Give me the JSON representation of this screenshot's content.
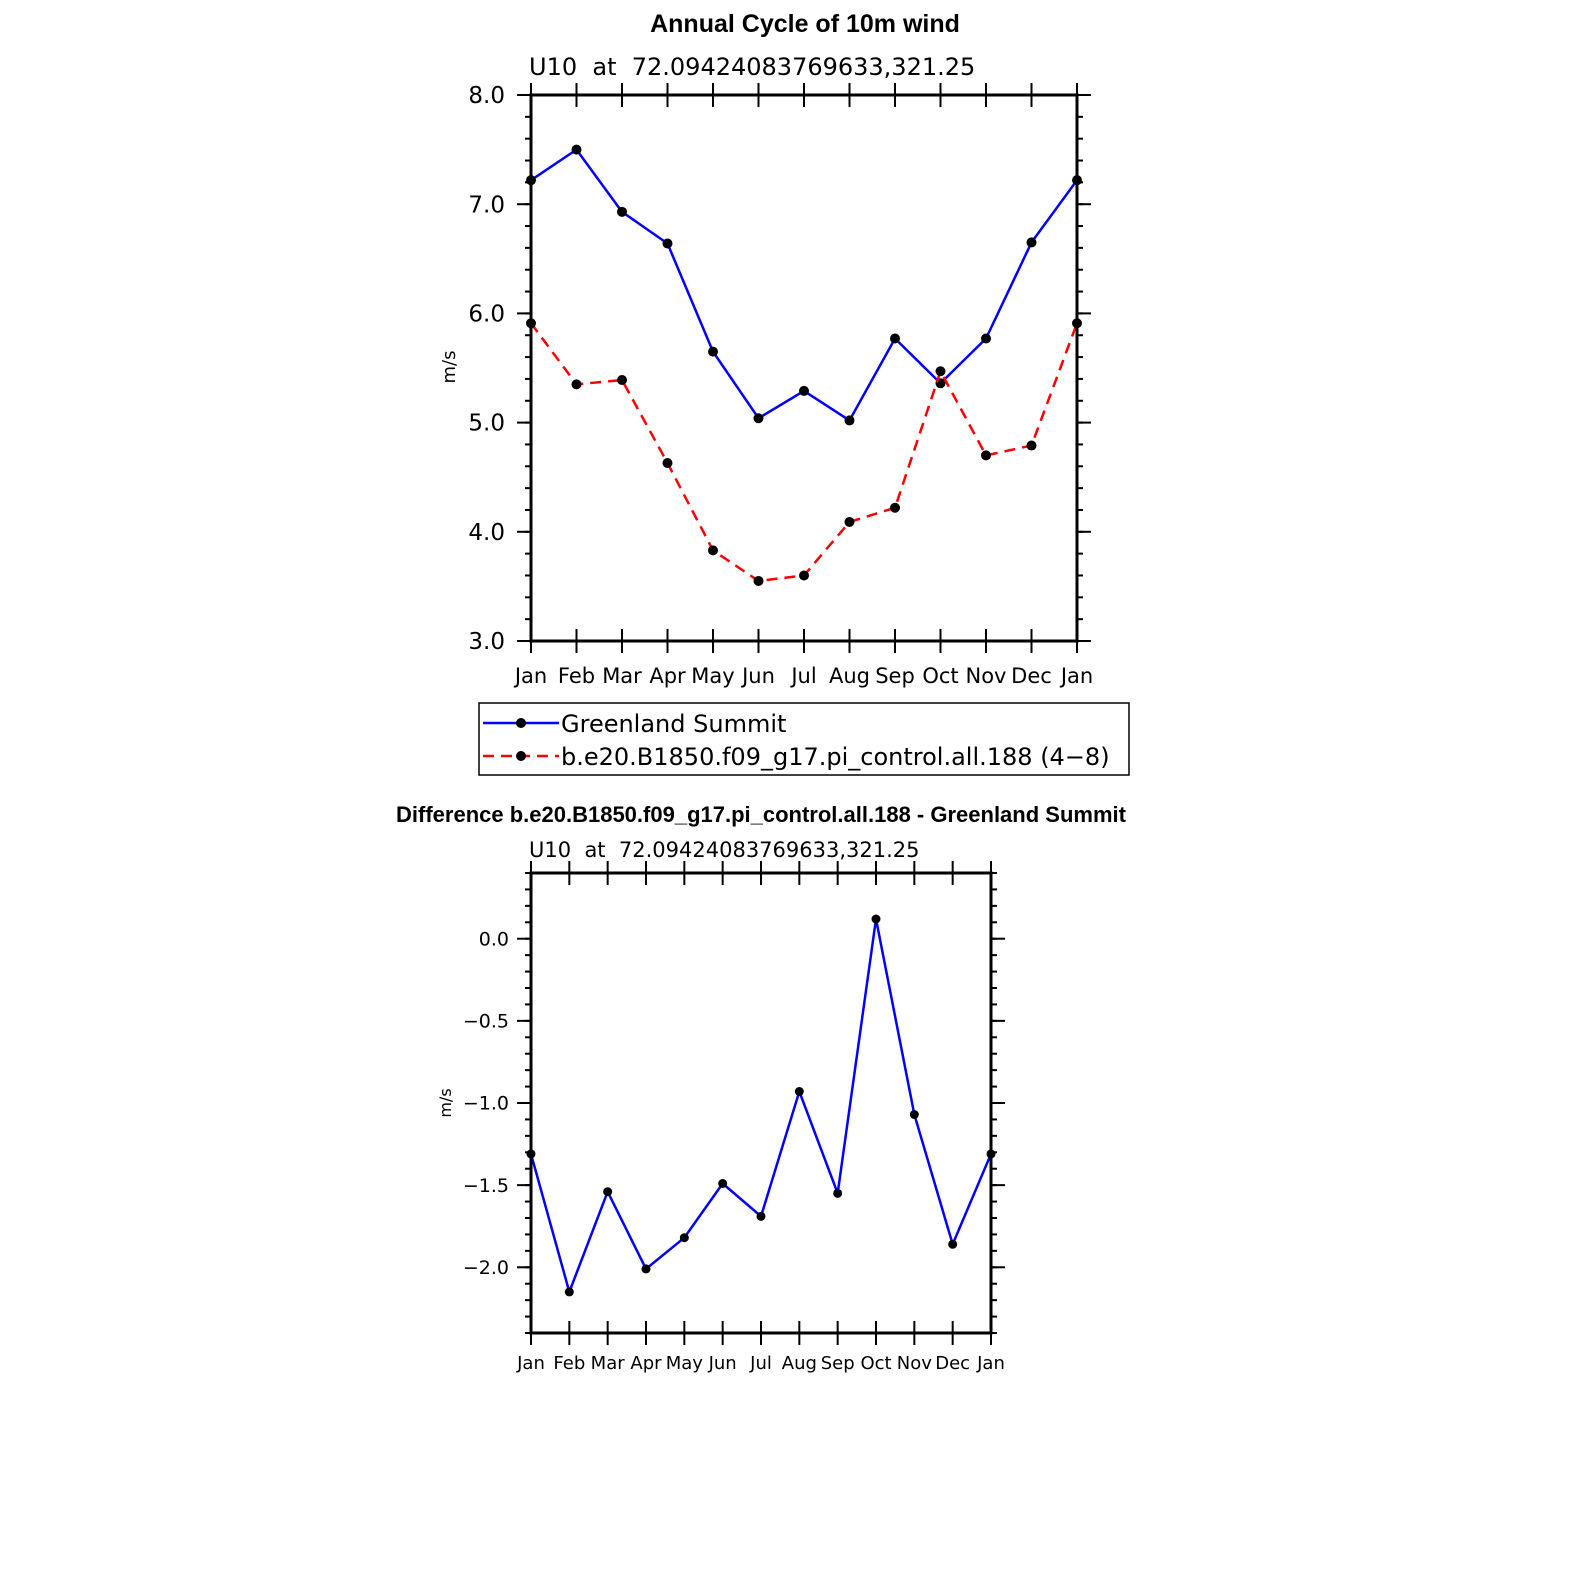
{
  "chart_data": [
    {
      "type": "line",
      "title": "Annual Cycle of 10m wind",
      "subtitle": "U10  at  72.09424083769633,321.25",
      "xlabel": "",
      "ylabel": "m/s",
      "categories": [
        "Jan",
        "Feb",
        "Mar",
        "Apr",
        "May",
        "Jun",
        "Jul",
        "Aug",
        "Sep",
        "Oct",
        "Nov",
        "Dec",
        "Jan"
      ],
      "ylim": [
        3.0,
        8.0
      ],
      "yticks": [
        3.0,
        4.0,
        5.0,
        6.0,
        7.0,
        8.0
      ],
      "ytick_labels": [
        "3.0",
        "4.0",
        "5.0",
        "6.0",
        "7.0",
        "8.0"
      ],
      "series": [
        {
          "name": "Greenland Summit",
          "color": "#0000ff",
          "dash": "solid",
          "values": [
            7.22,
            7.5,
            6.93,
            6.64,
            5.65,
            5.04,
            5.29,
            5.02,
            5.77,
            5.36,
            5.77,
            6.65,
            7.22
          ]
        },
        {
          "name": "b.e20.B1850.f09_g17.pi_control.all.188 (4−8)",
          "color": "#ff0000",
          "dash": "dashed",
          "values": [
            5.91,
            5.35,
            5.39,
            4.63,
            3.83,
            3.55,
            3.6,
            4.09,
            4.22,
            5.47,
            4.7,
            4.79,
            5.91
          ]
        }
      ],
      "legend": "bottom"
    },
    {
      "type": "line",
      "title": "Difference b.e20.B1850.f09_g17.pi_control.all.188 - Greenland Summit",
      "subtitle": "U10  at  72.09424083769633,321.25",
      "xlabel": "",
      "ylabel": "m/s",
      "categories": [
        "Jan",
        "Feb",
        "Mar",
        "Apr",
        "May",
        "Jun",
        "Jul",
        "Aug",
        "Sep",
        "Oct",
        "Nov",
        "Dec",
        "Jan"
      ],
      "ylim": [
        -2.4,
        0.4
      ],
      "yticks": [
        -2.0,
        -1.5,
        -1.0,
        -0.5,
        0.0
      ],
      "ytick_labels": [
        "−2.0",
        "−1.5",
        "−1.0",
        "−0.5",
        "0.0"
      ],
      "series": [
        {
          "color": "#0000ff",
          "dash": "solid",
          "values": [
            -1.31,
            -2.15,
            -1.54,
            -2.01,
            -1.82,
            -1.49,
            -1.69,
            -0.93,
            -1.55,
            0.12,
            -1.07,
            -1.86,
            -1.31
          ]
        }
      ]
    }
  ]
}
